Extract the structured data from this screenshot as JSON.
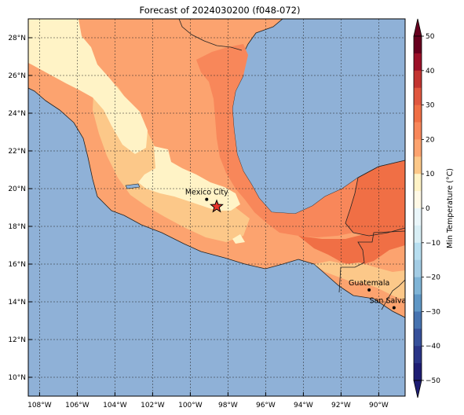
{
  "title": "Forecast of 2024030200 (f048-072)",
  "map": {
    "lon_range": [
      -108.6,
      -88.6
    ],
    "lat_range": [
      9.0,
      29.0
    ],
    "ocean_color": "#8fb1d7",
    "x_ticks": [
      {
        "lon": -108,
        "label": "108°W"
      },
      {
        "lon": -106,
        "label": "106°W"
      },
      {
        "lon": -104,
        "label": "104°W"
      },
      {
        "lon": -102,
        "label": "102°W"
      },
      {
        "lon": -100,
        "label": "100°W"
      },
      {
        "lon": -98,
        "label": "98°W"
      },
      {
        "lon": -96,
        "label": "96°W"
      },
      {
        "lon": -94,
        "label": "94°W"
      },
      {
        "lon": -92,
        "label": "92°W"
      },
      {
        "lon": -90,
        "label": "90°W"
      }
    ],
    "y_ticks": [
      {
        "lat": 10,
        "label": "10°N"
      },
      {
        "lat": 12,
        "label": "12°N"
      },
      {
        "lat": 14,
        "label": "14°N"
      },
      {
        "lat": 16,
        "label": "16°N"
      },
      {
        "lat": 18,
        "label": "18°N"
      },
      {
        "lat": 20,
        "label": "20°N"
      },
      {
        "lat": 22,
        "label": "22°N"
      },
      {
        "lat": 24,
        "label": "24°N"
      },
      {
        "lat": 26,
        "label": "26°N"
      },
      {
        "lat": 28,
        "label": "28°N"
      }
    ],
    "cities": [
      {
        "name": "Mexico City",
        "lon": -99.13,
        "lat": 19.43
      },
      {
        "name": "Guatemala",
        "lon": -90.51,
        "lat": 14.63
      },
      {
        "name": "San Salvador",
        "lon": -89.19,
        "lat": 13.69
      }
    ],
    "star": {
      "lon": -98.6,
      "lat": 19.05,
      "color": "#e8342b"
    }
  },
  "colorbar": {
    "label": "Min Temperature (°C)",
    "tick_values": [
      "50",
      "40",
      "30",
      "20",
      "10",
      "0",
      "−10",
      "−20",
      "−30",
      "−40",
      "−50"
    ],
    "levels_top_to_bottom": [
      {
        "from": 50,
        "to": 45,
        "color": "#67001f"
      },
      {
        "from": 45,
        "to": 40,
        "color": "#9b1029"
      },
      {
        "from": 40,
        "to": 35,
        "color": "#c23431"
      },
      {
        "from": 35,
        "to": 30,
        "color": "#e0573f"
      },
      {
        "from": 30,
        "to": 25,
        "color": "#f06f45"
      },
      {
        "from": 25,
        "to": 20,
        "color": "#f8875a"
      },
      {
        "from": 20,
        "to": 15,
        "color": "#fca36f"
      },
      {
        "from": 15,
        "to": 10,
        "color": "#fcc889"
      },
      {
        "from": 10,
        "to": 5,
        "color": "#fff3c6"
      },
      {
        "from": 5,
        "to": 0,
        "color": "#fff9e6"
      },
      {
        "from": 0,
        "to": -5,
        "color": "#eaf6fa"
      },
      {
        "from": -5,
        "to": -10,
        "color": "#d8eef5"
      },
      {
        "from": -10,
        "to": -15,
        "color": "#b7def0"
      },
      {
        "from": -15,
        "to": -20,
        "color": "#a3cce4"
      },
      {
        "from": -20,
        "to": -25,
        "color": "#7fb4d6"
      },
      {
        "from": -25,
        "to": -30,
        "color": "#5f97c5"
      },
      {
        "from": -30,
        "to": -35,
        "color": "#4673b0"
      },
      {
        "from": -35,
        "to": -40,
        "color": "#36509a"
      },
      {
        "from": -40,
        "to": -45,
        "color": "#2a3587"
      },
      {
        "from": -45,
        "to": -50,
        "color": "#1e1d73"
      }
    ]
  }
}
